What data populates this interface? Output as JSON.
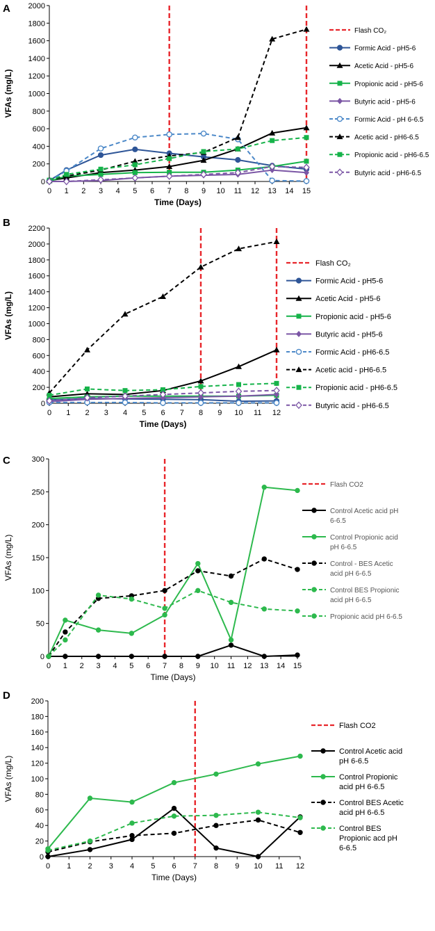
{
  "chart_data": [
    {
      "panel": "A",
      "type": "line",
      "xlabel": "Time (Days)",
      "ylabel": "VFAs (mg/L)",
      "xlim": [
        0,
        15
      ],
      "ylim": [
        0,
        2000
      ],
      "xticks": [
        0,
        1,
        2,
        3,
        4,
        5,
        6,
        7,
        8,
        9,
        10,
        11,
        12,
        13,
        14,
        15
      ],
      "yticks": [
        0,
        200,
        400,
        600,
        800,
        1000,
        1200,
        1400,
        1600,
        1800,
        2000
      ],
      "vlines": [
        7,
        15
      ],
      "legend_vline": "Flash CO₂",
      "series": [
        {
          "name": "Formic Acid - pH5-6",
          "color": "#2e5597",
          "dash": "solid",
          "marker": "circle",
          "x": [
            0,
            1,
            3,
            5,
            7,
            9,
            11,
            13,
            15
          ],
          "y": [
            10,
            130,
            300,
            365,
            320,
            280,
            245,
            180,
            140
          ]
        },
        {
          "name": "Acetic Acid - pH5-6",
          "color": "#000000",
          "dash": "solid",
          "marker": "triangle",
          "x": [
            0,
            1,
            3,
            5,
            7,
            9,
            11,
            13,
            15
          ],
          "y": [
            10,
            40,
            100,
            130,
            170,
            240,
            370,
            550,
            610
          ]
        },
        {
          "name": "Propionic acid - pH5-6",
          "color": "#16b34a",
          "dash": "solid",
          "marker": "square",
          "x": [
            0,
            1,
            3,
            5,
            7,
            9,
            11,
            13,
            15
          ],
          "y": [
            5,
            60,
            80,
            100,
            105,
            105,
            130,
            170,
            230
          ]
        },
        {
          "name": "Butyric acid - pH5-6",
          "color": "#7b56a5",
          "dash": "solid",
          "marker": "diamond",
          "x": [
            0,
            1,
            3,
            5,
            7,
            9,
            11,
            13,
            15
          ],
          "y": [
            0,
            0,
            10,
            40,
            60,
            70,
            80,
            130,
            100
          ]
        },
        {
          "name": "Formic Acid - pH 6-6.5",
          "color": "#4b88c8",
          "dash": "dashed",
          "marker": "circle-open",
          "x": [
            0,
            1,
            3,
            5,
            7,
            9,
            11,
            13,
            15
          ],
          "y": [
            10,
            120,
            375,
            500,
            535,
            545,
            480,
            10,
            5
          ]
        },
        {
          "name": "Acetic acid - pH6-6.5",
          "color": "#000000",
          "dash": "dashed",
          "marker": "triangle",
          "x": [
            0,
            1,
            3,
            5,
            7,
            9,
            11,
            13,
            15
          ],
          "y": [
            20,
            60,
            130,
            230,
            290,
            330,
            500,
            1620,
            1730
          ]
        },
        {
          "name": "Propionic acid - pH6-6.5",
          "color": "#16b34a",
          "dash": "dashed",
          "marker": "square",
          "x": [
            0,
            1,
            3,
            5,
            7,
            9,
            11,
            13,
            15
          ],
          "y": [
            15,
            80,
            140,
            190,
            260,
            340,
            370,
            465,
            500
          ]
        },
        {
          "name": "Butyric acid - pH6-6.5",
          "color": "#7b56a5",
          "dash": "dashed",
          "marker": "diamond-open",
          "x": [
            0,
            1,
            3,
            5,
            7,
            9,
            11,
            13,
            15
          ],
          "y": [
            0,
            0,
            20,
            40,
            60,
            80,
            100,
            170,
            160
          ]
        }
      ]
    },
    {
      "panel": "B",
      "type": "line",
      "xlabel": "Time (Days)",
      "ylabel": "VFAs (mg/L)",
      "xlim": [
        0,
        12
      ],
      "ylim": [
        0,
        2200
      ],
      "xticks": [
        0,
        1,
        2,
        3,
        4,
        5,
        6,
        7,
        8,
        9,
        10,
        11,
        12
      ],
      "yticks": [
        0,
        200,
        400,
        600,
        800,
        1000,
        1200,
        1400,
        1600,
        1800,
        2000,
        2200
      ],
      "vlines": [
        8,
        12
      ],
      "legend_vline": "Flash CO₂",
      "series": [
        {
          "name": "Formic Acid - pH5-6",
          "color": "#2e5597",
          "dash": "solid",
          "marker": "circle",
          "x": [
            0,
            2,
            4,
            6,
            8,
            10,
            12
          ],
          "y": [
            40,
            60,
            55,
            50,
            45,
            25,
            30
          ]
        },
        {
          "name": "Acetic Acid - pH5-6",
          "color": "#000000",
          "dash": "solid",
          "marker": "triangle",
          "x": [
            0,
            2,
            4,
            6,
            8,
            10,
            12
          ],
          "y": [
            80,
            120,
            110,
            160,
            280,
            460,
            670
          ]
        },
        {
          "name": "Propionic acid - pH5-6",
          "color": "#16b34a",
          "dash": "solid",
          "marker": "square",
          "x": [
            0,
            2,
            4,
            6,
            8,
            10,
            12
          ],
          "y": [
            60,
            80,
            90,
            90,
            90,
            90,
            100
          ]
        },
        {
          "name": "Butyric acid - pH5-6",
          "color": "#7b56a5",
          "dash": "solid",
          "marker": "diamond",
          "x": [
            0,
            2,
            4,
            6,
            8,
            10,
            12
          ],
          "y": [
            20,
            50,
            60,
            70,
            80,
            90,
            110
          ]
        },
        {
          "name": "Formic Acid - pH6-6.5",
          "color": "#4b88c8",
          "dash": "dashed",
          "marker": "circle-open",
          "x": [
            0,
            2,
            4,
            6,
            8,
            10,
            12
          ],
          "y": [
            10,
            10,
            10,
            5,
            5,
            5,
            5
          ]
        },
        {
          "name": "Acetic acid - pH6-6.5",
          "color": "#000000",
          "dash": "dashed",
          "marker": "triangle",
          "x": [
            0,
            2,
            4,
            6,
            8,
            10,
            12
          ],
          "y": [
            130,
            670,
            1120,
            1340,
            1710,
            1940,
            2030
          ]
        },
        {
          "name": "Propionic acid - pH6-6.5",
          "color": "#16b34a",
          "dash": "dashed",
          "marker": "square",
          "x": [
            0,
            2,
            4,
            6,
            8,
            10,
            12
          ],
          "y": [
            100,
            180,
            160,
            170,
            210,
            235,
            250
          ]
        },
        {
          "name": "Butyric acid - pH6-6.5",
          "color": "#7b56a5",
          "dash": "dashed",
          "marker": "diamond-open",
          "x": [
            0,
            2,
            4,
            6,
            8,
            10,
            12
          ],
          "y": [
            30,
            70,
            90,
            110,
            130,
            150,
            160
          ]
        }
      ]
    },
    {
      "panel": "C",
      "type": "line",
      "xlabel": "Time (Days)",
      "ylabel": "VFAs (mg/L)",
      "xlim": [
        0,
        15
      ],
      "ylim": [
        0,
        300
      ],
      "xticks": [
        0,
        1,
        2,
        3,
        4,
        5,
        6,
        7,
        8,
        9,
        10,
        11,
        12,
        13,
        14,
        15
      ],
      "yticks": [
        0,
        50,
        100,
        150,
        200,
        250,
        300
      ],
      "vlines": [
        7
      ],
      "legend_vline": "Flash CO2",
      "series": [
        {
          "name": "Control Acetic acid pH 6-6.5",
          "color": "#000000",
          "dash": "solid",
          "marker": "dot",
          "x": [
            0,
            1,
            3,
            5,
            7,
            9,
            11,
            13,
            15
          ],
          "y": [
            0,
            0,
            0,
            0,
            0,
            0,
            17,
            0,
            2
          ]
        },
        {
          "name": "Control Propionic acid pH 6-6.5",
          "color": "#2db94d",
          "dash": "solid",
          "marker": "dot",
          "x": [
            0,
            1,
            3,
            5,
            7,
            9,
            11,
            13,
            15
          ],
          "y": [
            0,
            55,
            40,
            35,
            63,
            141,
            25,
            257,
            252
          ]
        },
        {
          "name": "Control - BES Acetic acid pH 6-6.5",
          "color": "#000000",
          "dash": "dashed",
          "marker": "dot",
          "x": [
            0,
            1,
            3,
            5,
            7,
            9,
            11,
            13,
            15
          ],
          "y": [
            0,
            37,
            88,
            92,
            100,
            130,
            122,
            148,
            132
          ]
        },
        {
          "name": "Control BES Propionic acid pH 6-6.5",
          "color": "#2db94d",
          "dash": "dashed",
          "marker": "dot",
          "x": [
            0,
            1,
            3,
            5,
            7,
            9,
            11,
            13,
            15
          ],
          "y": [
            0,
            25,
            93,
            87,
            73,
            100,
            82,
            72,
            69
          ]
        },
        {
          "name": "Propionic acid pH 6-6.5",
          "color": "#2db94d",
          "dash": "dashed",
          "marker": "dot",
          "legend_only": true
        }
      ]
    },
    {
      "panel": "D",
      "type": "line",
      "xlabel": "Time (Days)",
      "ylabel": "VFAs (mg/L)",
      "xlim": [
        0,
        12
      ],
      "ylim": [
        0,
        200
      ],
      "xticks": [
        0,
        1,
        2,
        3,
        4,
        5,
        6,
        7,
        8,
        9,
        10,
        11,
        12
      ],
      "yticks": [
        0,
        20,
        40,
        60,
        80,
        100,
        120,
        140,
        160,
        180,
        200
      ],
      "vlines": [
        7
      ],
      "legend_vline": "Flash CO2",
      "series": [
        {
          "name": "Control Acetic acid pH 6-6.5",
          "color": "#000000",
          "dash": "solid",
          "marker": "dot",
          "x": [
            0,
            2,
            4,
            6,
            8,
            10,
            12
          ],
          "y": [
            0,
            9,
            22,
            62,
            11,
            0,
            51
          ]
        },
        {
          "name": "Control Propionic acid pH 6-6.5",
          "color": "#2db94d",
          "dash": "solid",
          "marker": "dot",
          "x": [
            0,
            2,
            4,
            6,
            8,
            10,
            12
          ],
          "y": [
            10,
            75,
            70,
            95,
            106,
            119,
            129
          ]
        },
        {
          "name": "Control BES Acetic acid pH 6-6.5",
          "color": "#000000",
          "dash": "dashed",
          "marker": "dot",
          "x": [
            0,
            2,
            4,
            6,
            8,
            10,
            12
          ],
          "y": [
            6,
            19,
            27,
            30,
            40,
            47,
            31
          ]
        },
        {
          "name": "Control BES Propionic acd pH 6-6.5",
          "color": "#2db94d",
          "dash": "dashed",
          "marker": "dot",
          "x": [
            0,
            2,
            4,
            6,
            8,
            10,
            12
          ],
          "y": [
            8,
            20,
            43,
            52,
            53,
            57,
            50
          ]
        }
      ]
    }
  ]
}
